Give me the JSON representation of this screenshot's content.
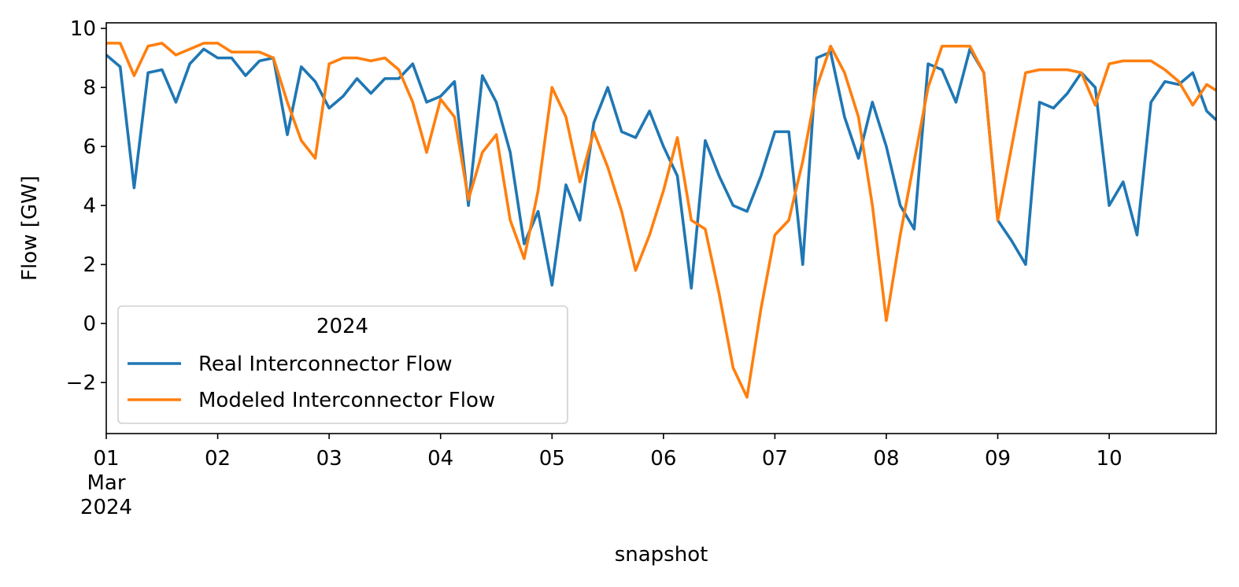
{
  "chart_data": {
    "type": "line",
    "xlabel": "snapshot",
    "ylabel": "Flow [GW]",
    "legend_title": "2024",
    "legend": "lower left",
    "grid": false,
    "x": [
      1,
      1.125,
      1.25,
      1.375,
      1.5,
      1.625,
      1.75,
      1.875,
      2,
      2.125,
      2.25,
      2.375,
      2.5,
      2.625,
      2.75,
      2.875,
      3,
      3.125,
      3.25,
      3.375,
      3.5,
      3.625,
      3.75,
      3.875,
      4,
      4.125,
      4.25,
      4.375,
      4.5,
      4.625,
      4.75,
      4.875,
      5,
      5.125,
      5.25,
      5.375,
      5.5,
      5.625,
      5.75,
      5.875,
      6,
      6.125,
      6.25,
      6.375,
      6.5,
      6.625,
      6.75,
      6.875,
      7,
      7.125,
      7.25,
      7.375,
      7.5,
      7.625,
      7.75,
      7.875,
      8,
      8.125,
      8.25,
      8.375,
      8.5,
      8.625,
      8.75,
      8.875,
      9,
      9.125,
      9.25,
      9.375,
      9.5,
      9.625,
      9.75,
      9.875,
      10,
      10.125,
      10.25,
      10.375,
      10.5,
      10.625,
      10.75,
      10.875,
      10.96
    ],
    "series": [
      {
        "name": "Real Interconnector Flow",
        "color": "#1f77b4",
        "values": [
          9.1,
          8.7,
          4.6,
          8.5,
          8.6,
          7.5,
          8.8,
          9.3,
          9.0,
          9.0,
          8.4,
          8.9,
          9.0,
          6.4,
          8.7,
          8.2,
          7.3,
          7.7,
          8.3,
          7.8,
          8.3,
          8.3,
          8.8,
          7.5,
          7.7,
          8.2,
          4.0,
          8.4,
          7.5,
          5.8,
          2.7,
          3.8,
          1.3,
          4.7,
          3.5,
          6.8,
          8.0,
          6.5,
          6.3,
          7.2,
          6.0,
          5.0,
          1.2,
          6.2,
          5.0,
          4.0,
          3.8,
          5.0,
          6.5,
          6.5,
          2.0,
          9.0,
          9.2,
          7.0,
          5.6,
          7.5,
          6.0,
          4.0,
          3.2,
          8.8,
          8.6,
          7.5,
          9.3,
          8.5,
          3.5,
          2.8,
          2.0,
          7.5,
          7.3,
          7.8,
          8.5,
          8.0,
          4.0,
          4.8,
          3.0,
          7.5,
          8.2,
          8.1,
          8.5,
          7.2,
          6.9
        ]
      },
      {
        "name": "Modeled Interconnector Flow",
        "color": "#ff7f0e",
        "values": [
          9.5,
          9.5,
          8.4,
          9.4,
          9.5,
          9.1,
          9.3,
          9.5,
          9.5,
          9.2,
          9.2,
          9.2,
          9.0,
          7.5,
          6.2,
          5.6,
          8.8,
          9.0,
          9.0,
          8.9,
          9.0,
          8.6,
          7.5,
          5.8,
          7.6,
          7.0,
          4.2,
          5.8,
          6.4,
          3.5,
          2.2,
          4.5,
          8.0,
          7.0,
          4.8,
          6.5,
          5.3,
          3.8,
          1.8,
          3.0,
          4.5,
          6.3,
          3.5,
          3.2,
          1.0,
          -1.5,
          -2.5,
          0.5,
          3.0,
          3.5,
          5.5,
          8.0,
          9.4,
          8.5,
          7.0,
          4.0,
          0.1,
          3.0,
          5.5,
          8.0,
          9.4,
          9.4,
          9.4,
          8.5,
          3.5,
          6.0,
          8.5,
          8.6,
          8.6,
          8.6,
          8.5,
          7.4,
          8.8,
          8.9,
          8.9,
          8.9,
          8.6,
          8.2,
          7.4,
          8.1,
          7.9
        ]
      }
    ],
    "xlim": [
      1,
      10.96
    ],
    "xticks": [
      {
        "value": 1,
        "label": "01\nMar\n2024"
      },
      {
        "value": 2,
        "label": "02"
      },
      {
        "value": 3,
        "label": "03"
      },
      {
        "value": 4,
        "label": "04"
      },
      {
        "value": 5,
        "label": "05"
      },
      {
        "value": 6,
        "label": "06"
      },
      {
        "value": 7,
        "label": "07"
      },
      {
        "value": 8,
        "label": "08"
      },
      {
        "value": 9,
        "label": "09"
      },
      {
        "value": 10,
        "label": "10"
      }
    ],
    "ylim": [
      -3.73,
      10.19
    ],
    "yticks": [
      {
        "value": -2,
        "label": "−2"
      },
      0,
      2,
      4,
      6,
      8,
      10
    ]
  }
}
